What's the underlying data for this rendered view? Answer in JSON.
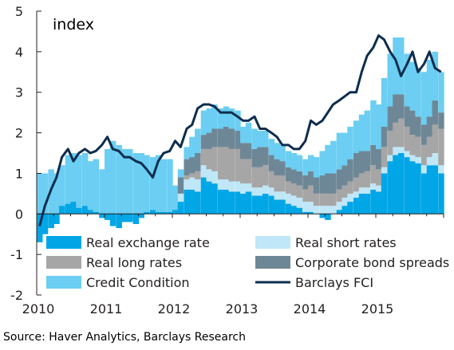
{
  "chart_data": {
    "type": "area",
    "title": "index",
    "source": "Source: Haver Analytics, Barclays Research",
    "ylim": [
      -2,
      5
    ],
    "yticks": [
      5,
      4,
      3,
      2,
      1,
      0,
      -1,
      -2
    ],
    "xlim": [
      2010.0,
      2016.0
    ],
    "xticks": [
      {
        "label": "2010",
        "at": 2010.0
      },
      {
        "label": "2011",
        "at": 2011.0
      },
      {
        "label": "2012",
        "at": 2012.0
      },
      {
        "label": "2013",
        "at": 2013.0
      },
      {
        "label": "2014",
        "at": 2014.0
      },
      {
        "label": "2015",
        "at": 2015.0
      }
    ],
    "legend_position": "bottom, inside plot",
    "x": [
      2010.0,
      2010.08,
      2010.17,
      2010.25,
      2010.33,
      2010.42,
      2010.5,
      2010.58,
      2010.67,
      2010.75,
      2010.83,
      2010.92,
      2011.0,
      2011.08,
      2011.17,
      2011.25,
      2011.33,
      2011.42,
      2011.5,
      2011.58,
      2011.67,
      2011.75,
      2011.83,
      2011.92,
      2012.0,
      2012.08,
      2012.17,
      2012.25,
      2012.33,
      2012.42,
      2012.5,
      2012.58,
      2012.67,
      2012.75,
      2012.83,
      2012.92,
      2013.0,
      2013.08,
      2013.17,
      2013.25,
      2013.33,
      2013.42,
      2013.5,
      2013.58,
      2013.67,
      2013.75,
      2013.83,
      2013.92,
      2014.0,
      2014.08,
      2014.17,
      2014.25,
      2014.33,
      2014.42,
      2014.5,
      2014.58,
      2014.67,
      2014.75,
      2014.83,
      2014.92,
      2015.0,
      2015.08,
      2015.17,
      2015.25,
      2015.33,
      2015.42,
      2015.5,
      2015.58,
      2015.67,
      2015.75,
      2015.83,
      2015.92
    ],
    "series": [
      {
        "name": "Real exchange rate",
        "kind": "stacked-bar",
        "color": "#00a6e6",
        "values": [
          -0.7,
          -0.5,
          -0.35,
          -0.25,
          0.2,
          0.25,
          0.3,
          0.15,
          0.2,
          0.1,
          0.05,
          -0.1,
          -0.15,
          -0.3,
          -0.35,
          -0.2,
          -0.2,
          -0.25,
          -0.1,
          0.05,
          0.1,
          0.05,
          0.05,
          0.05,
          0.1,
          0.3,
          0.6,
          0.6,
          0.55,
          0.9,
          0.8,
          0.75,
          0.6,
          0.6,
          0.55,
          0.55,
          0.5,
          0.55,
          0.45,
          0.45,
          0.5,
          0.45,
          0.35,
          0.35,
          0.25,
          0.2,
          0.15,
          0.05,
          0.05,
          0.0,
          -0.1,
          -0.15,
          0.0,
          0.1,
          0.2,
          0.3,
          0.4,
          0.5,
          0.5,
          0.6,
          0.55,
          1.0,
          1.3,
          1.45,
          1.5,
          1.4,
          1.3,
          1.25,
          1.0,
          1.2,
          1.2,
          1.0
        ]
      },
      {
        "name": "Real short rates",
        "kind": "stacked-bar",
        "color": "#bfe7f8",
        "values": [
          0.0,
          0.0,
          0.0,
          0.0,
          0.0,
          0.0,
          0.0,
          0.0,
          0.0,
          0.0,
          0.0,
          0.0,
          0.0,
          0.0,
          0.0,
          0.0,
          0.0,
          0.0,
          0.0,
          0.0,
          0.0,
          0.0,
          0.0,
          0.0,
          0.0,
          0.2,
          0.25,
          0.3,
          0.3,
          0.3,
          0.3,
          0.3,
          0.25,
          0.25,
          0.25,
          0.25,
          0.25,
          0.2,
          0.2,
          0.2,
          0.2,
          0.2,
          0.2,
          0.2,
          0.25,
          0.25,
          0.25,
          0.25,
          0.25,
          0.2,
          0.2,
          0.2,
          0.2,
          0.2,
          0.2,
          0.2,
          0.15,
          0.15,
          0.15,
          0.15,
          0.15,
          0.15,
          0.15,
          0.2,
          0.15,
          0.15,
          0.15,
          0.15,
          0.2,
          0.2,
          0.3,
          0.2
        ]
      },
      {
        "name": "Real long rates",
        "kind": "stacked-bar",
        "color": "#a6a6a6",
        "values": [
          0.0,
          0.0,
          0.0,
          0.0,
          0.0,
          0.0,
          0.0,
          0.0,
          0.0,
          0.0,
          0.0,
          0.0,
          0.0,
          0.0,
          0.0,
          0.0,
          0.0,
          0.0,
          0.0,
          0.0,
          0.0,
          0.0,
          0.0,
          0.0,
          0.0,
          0.0,
          0.1,
          0.1,
          0.2,
          0.4,
          0.5,
          0.6,
          0.8,
          0.8,
          0.8,
          0.8,
          0.6,
          0.6,
          0.5,
          0.5,
          0.5,
          0.4,
          0.4,
          0.4,
          0.3,
          0.3,
          0.3,
          0.3,
          0.4,
          0.3,
          0.3,
          0.3,
          0.3,
          0.3,
          0.3,
          0.3,
          0.35,
          0.35,
          0.4,
          0.45,
          0.4,
          0.5,
          0.6,
          0.6,
          0.7,
          0.6,
          0.5,
          0.5,
          0.5,
          0.5,
          0.7,
          0.9
        ]
      },
      {
        "name": "Corporate bond spreads",
        "kind": "stacked-bar",
        "color": "#6e8796",
        "values": [
          0.0,
          0.0,
          0.0,
          0.0,
          0.0,
          0.0,
          0.0,
          0.0,
          0.0,
          0.0,
          0.0,
          0.0,
          0.0,
          0.0,
          0.0,
          0.0,
          0.0,
          0.0,
          0.0,
          0.0,
          0.0,
          0.0,
          0.0,
          0.0,
          0.0,
          0.4,
          0.4,
          0.4,
          0.45,
          0.35,
          0.4,
          0.45,
          0.45,
          0.5,
          0.5,
          0.45,
          0.4,
          0.4,
          0.45,
          0.5,
          0.45,
          0.4,
          0.4,
          0.35,
          0.35,
          0.35,
          0.35,
          0.35,
          0.35,
          0.4,
          0.45,
          0.5,
          0.5,
          0.5,
          0.5,
          0.55,
          0.6,
          0.55,
          0.5,
          0.5,
          0.5,
          0.5,
          0.6,
          0.7,
          0.6,
          0.5,
          0.6,
          0.5,
          0.5,
          0.5,
          0.6,
          0.4
        ]
      },
      {
        "name": "Credit Condition",
        "kind": "stacked-bar",
        "color": "#6bcef2",
        "values": [
          1.0,
          1.0,
          1.1,
          1.0,
          1.0,
          1.2,
          1.2,
          1.3,
          1.3,
          1.2,
          1.3,
          1.1,
          1.6,
          1.8,
          1.7,
          1.6,
          1.6,
          1.5,
          1.5,
          1.4,
          1.3,
          1.4,
          1.3,
          1.3,
          0.6,
          0.2,
          0.3,
          0.5,
          0.6,
          0.6,
          0.6,
          0.6,
          0.5,
          0.5,
          0.5,
          0.5,
          0.4,
          0.5,
          0.5,
          0.4,
          0.4,
          0.4,
          0.4,
          0.4,
          0.4,
          0.4,
          0.4,
          0.4,
          0.4,
          0.5,
          0.6,
          0.7,
          0.8,
          0.9,
          0.8,
          0.8,
          0.8,
          0.9,
          1.0,
          1.1,
          1.1,
          1.2,
          1.3,
          1.4,
          1.4,
          1.3,
          1.2,
          1.2,
          1.3,
          1.4,
          1.2,
          1.0
        ]
      },
      {
        "name": "Barclays FCI",
        "kind": "line",
        "color": "#0e2d4e",
        "values": [
          -0.3,
          0.2,
          0.6,
          0.9,
          1.4,
          1.6,
          1.3,
          1.5,
          1.6,
          1.5,
          1.55,
          1.7,
          1.9,
          1.6,
          1.55,
          1.4,
          1.4,
          1.3,
          1.25,
          1.1,
          0.9,
          1.3,
          1.5,
          1.55,
          1.8,
          1.65,
          2.1,
          2.2,
          2.6,
          2.7,
          2.7,
          2.65,
          2.5,
          2.5,
          2.5,
          2.4,
          2.3,
          2.3,
          2.4,
          2.1,
          2.1,
          2.0,
          1.9,
          1.7,
          1.7,
          1.6,
          1.6,
          1.8,
          2.3,
          2.2,
          2.3,
          2.5,
          2.7,
          2.8,
          2.9,
          3.0,
          3.0,
          3.5,
          3.9,
          4.1,
          4.4,
          4.3,
          4.0,
          3.8,
          3.4,
          3.7,
          4.0,
          3.5,
          3.7,
          4.0,
          3.6,
          3.5
        ]
      }
    ]
  }
}
